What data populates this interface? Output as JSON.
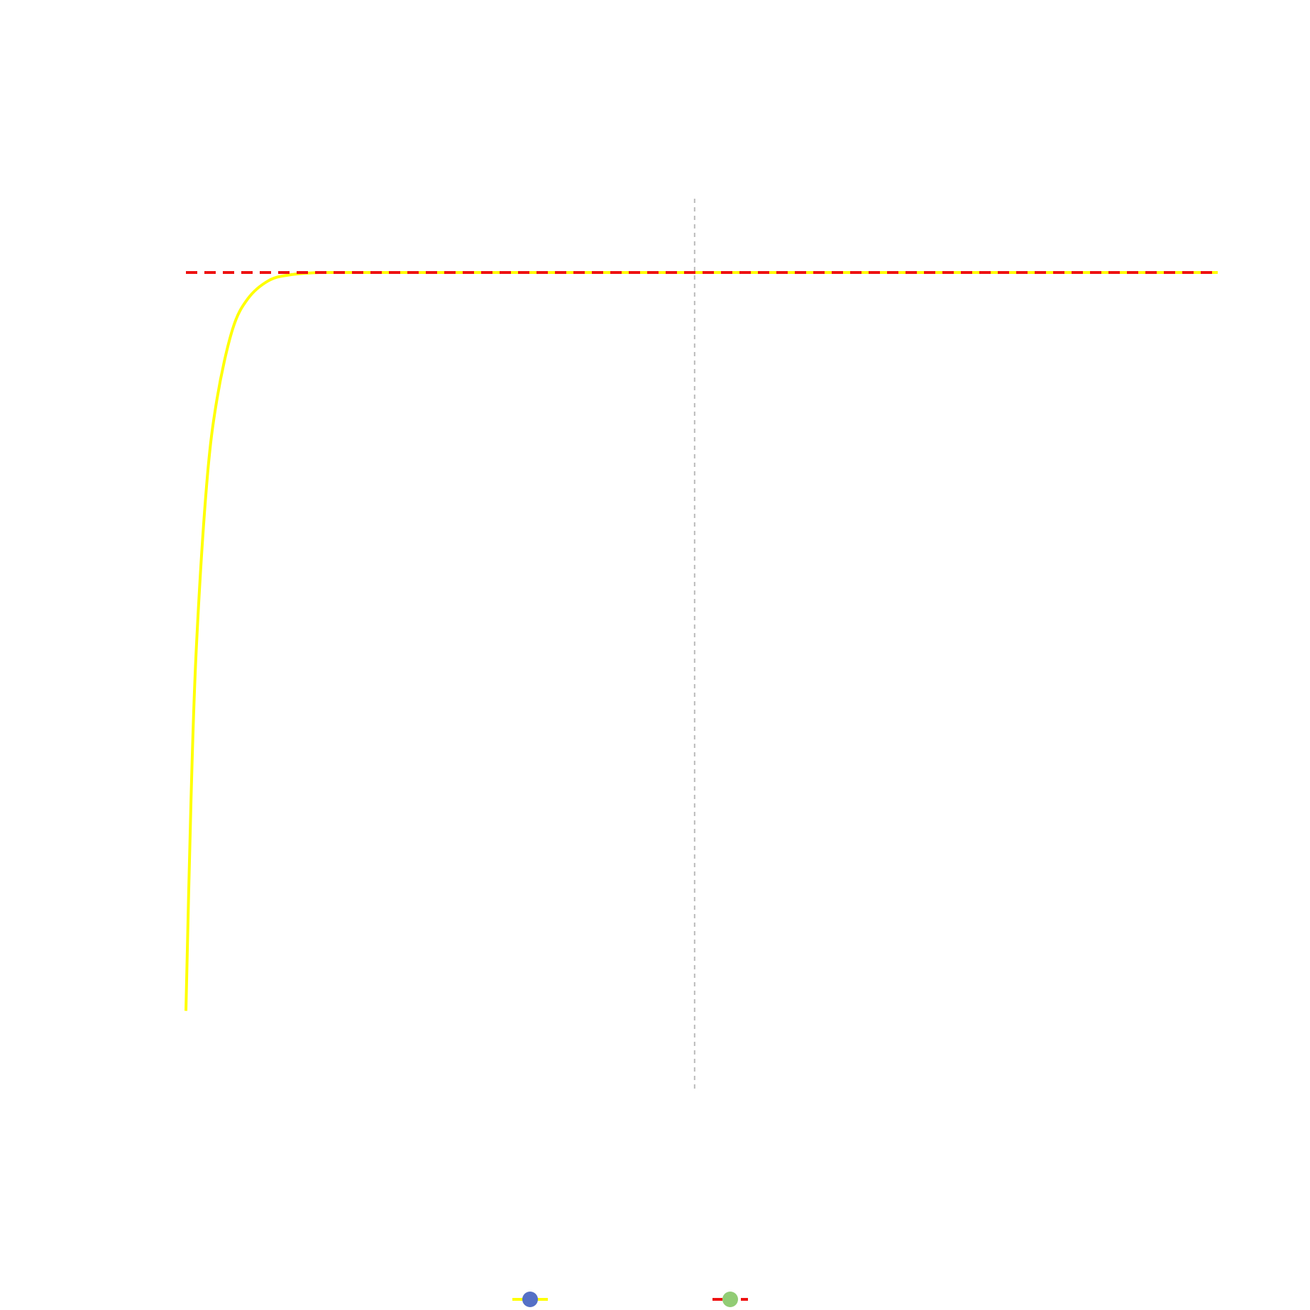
{
  "chart_data": {
    "type": "line",
    "title": "",
    "xlabel": "",
    "ylabel": "",
    "grid": false,
    "legend_position": "bottom",
    "xlim": [
      0,
      1
    ],
    "ylim": [
      0,
      1
    ],
    "vertical_reference_line": {
      "x": 0.493,
      "color": "#bbbbbb",
      "style": "dashed"
    },
    "series": [
      {
        "color": "#ffff00",
        "marker_color": "#5470c6",
        "style": "solid",
        "x": [
          0.0,
          0.005,
          0.01,
          0.02,
          0.03,
          0.045,
          0.06,
          0.08,
          0.1,
          0.13,
          0.16,
          0.2,
          0.3,
          0.5,
          0.75,
          1.0
        ],
        "y": [
          0.1,
          0.36,
          0.54,
          0.74,
          0.845,
          0.93,
          0.968,
          0.99,
          0.997,
          1.0,
          1.0,
          1.0,
          1.0,
          1.0,
          1.0,
          1.0
        ]
      },
      {
        "color": "#ee1111",
        "marker_color": "#91cc75",
        "style": "dashed",
        "x": [
          0.0,
          1.0
        ],
        "y": [
          1.0,
          1.0
        ]
      }
    ]
  }
}
